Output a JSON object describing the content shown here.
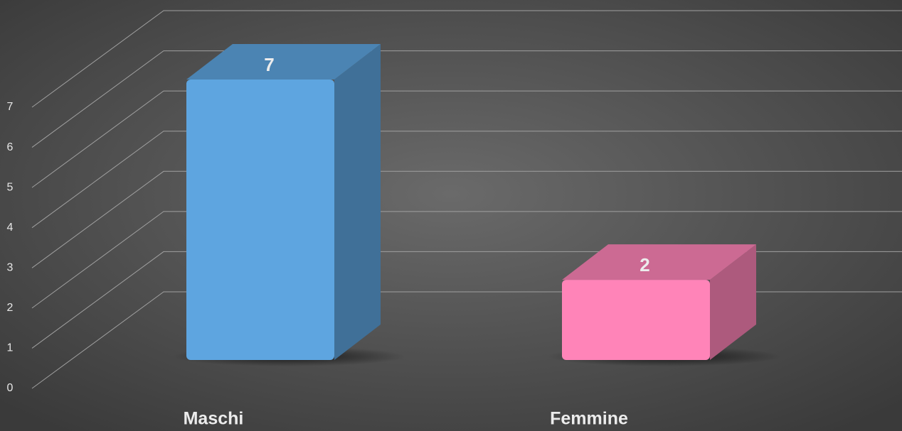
{
  "chart_data": {
    "type": "bar3d",
    "categories": [
      "Maschi",
      "Femmine"
    ],
    "values": [
      7,
      2
    ],
    "colors": [
      "#5ea5e0",
      "#ff84b8"
    ],
    "ylim": [
      0,
      7
    ],
    "yticks": [
      0,
      1,
      2,
      3,
      4,
      5,
      6,
      7
    ],
    "grid": true
  }
}
